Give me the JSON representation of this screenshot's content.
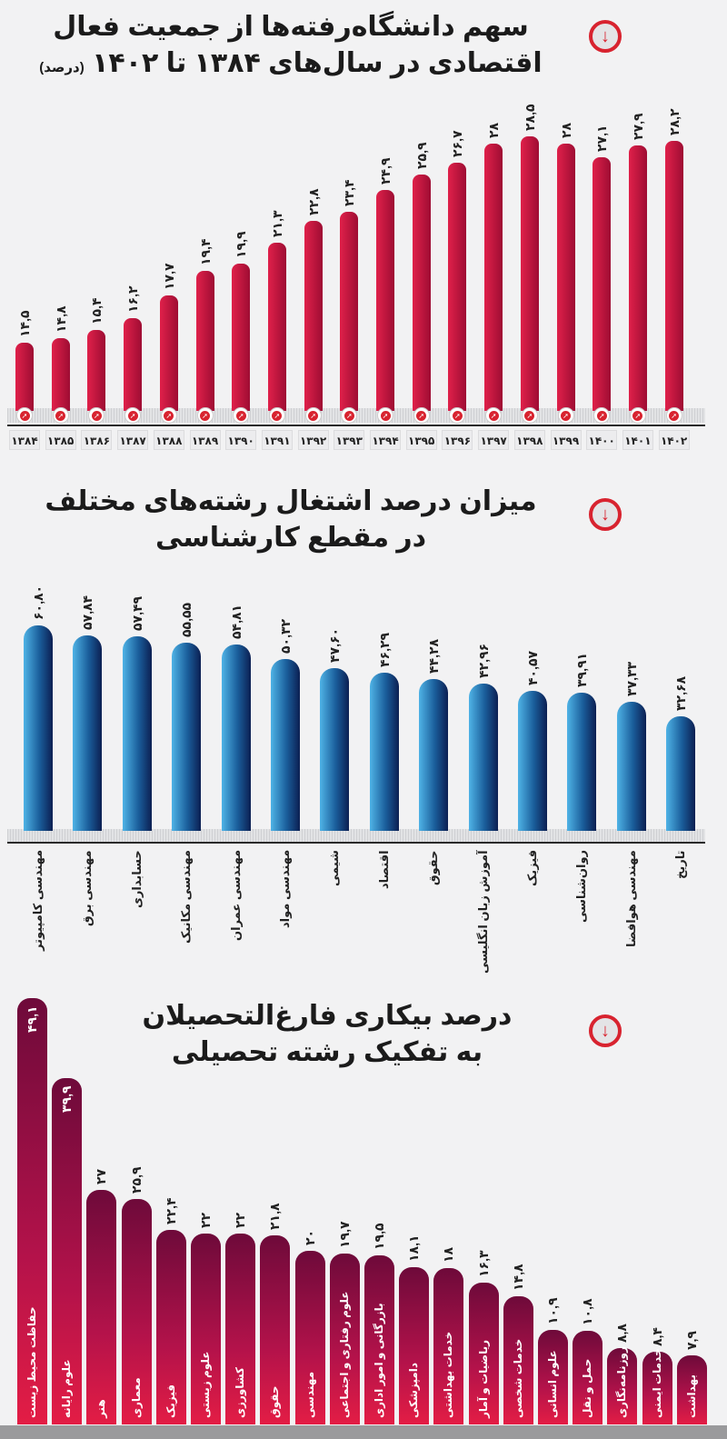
{
  "chart_data": [
    {
      "type": "bar",
      "title_line1": "سهم دانشگاه‌رفته‌ها از جمعیت فعال",
      "title_line2": "اقتصادی در سال‌های ۱۳۸۴ تا ۱۴۰۲",
      "title_unit": "(درصد)",
      "categories": [
        "۱۳۸۴",
        "۱۳۸۵",
        "۱۳۸۶",
        "۱۳۸۷",
        "۱۳۸۸",
        "۱۳۸۹",
        "۱۳۹۰",
        "۱۳۹۱",
        "۱۳۹۲",
        "۱۳۹۳",
        "۱۳۹۴",
        "۱۳۹۵",
        "۱۳۹۶",
        "۱۳۹۷",
        "۱۳۹۸",
        "۱۳۹۹",
        "۱۴۰۰",
        "۱۴۰۱",
        "۱۴۰۲"
      ],
      "values": [
        14.5,
        14.8,
        15.4,
        16.2,
        17.7,
        19.4,
        19.9,
        21.3,
        22.8,
        23.4,
        24.9,
        25.9,
        26.7,
        28,
        28.5,
        28,
        27.1,
        27.9,
        28.2
      ],
      "value_labels": [
        "۱۴,۵",
        "۱۴,۸",
        "۱۵,۴",
        "۱۶,۲",
        "۱۷,۷",
        "۱۹,۴",
        "۱۹,۹",
        "۲۱,۳",
        "۲۲,۸",
        "۲۳,۴",
        "۲۴,۹",
        "۲۵,۹",
        "۲۶,۷",
        "۲۸",
        "۲۸,۵",
        "۲۸",
        "۲۷,۱",
        "۲۷,۹",
        "۲۸,۲"
      ],
      "color": "#c8123a",
      "icon": "download-arrow-icon"
    },
    {
      "type": "bar",
      "title_line1": "میزان درصد اشتغال رشته‌های مختلف",
      "title_line2": "در مقطع کارشناسی",
      "categories": [
        "مهندسی کامپیوتر",
        "مهندسی برق",
        "حسابداری",
        "مهندسی مکانیک",
        "مهندسی عمران",
        "مهندسی مواد",
        "شیمی",
        "اقتصاد",
        "حقوق",
        "آموزش زبان انگلیسی",
        "فیزیک",
        "روان‌شناسی",
        "مهندسی هوافضا",
        "تاریخ"
      ],
      "values": [
        60.8,
        57.84,
        57.49,
        55.55,
        54.81,
        50.32,
        47.6,
        46.29,
        44.28,
        42.96,
        40.57,
        39.91,
        37.33,
        32.68
      ],
      "value_labels": [
        "۶۰,۸۰",
        "۵۷,۸۴",
        "۵۷,۴۹",
        "۵۵,۵۵",
        "۵۴,۸۱",
        "۵۰,۳۲",
        "۴۷,۶۰",
        "۴۶,۲۹",
        "۴۴,۲۸",
        "۴۲,۹۶",
        "۴۰,۵۷",
        "۳۹,۹۱",
        "۳۷,۳۳",
        "۳۲,۶۸"
      ],
      "color": "#1d6fae",
      "icon": "download-arrow-icon"
    },
    {
      "type": "bar",
      "title_line1": "درصد بیکاری فارغ‌التحصیلان",
      "title_line2": "به تفکیک رشته تحصیلی",
      "categories": [
        "حفاظت محیط زیست",
        "علوم رایانه",
        "هنر",
        "معماری",
        "فیزیک",
        "علوم زیستی",
        "کشاورزی",
        "حقوق",
        "مهندسی",
        "علوم رفتاری و اجتماعی",
        "بازرگانی و امور اداری",
        "دامپزشکی",
        "خدمات بهداشتی",
        "ریاضیات و آمار",
        "خدمات شخصی",
        "علوم انسانی",
        "حمل و نقل",
        "روزنامه‌نگاری",
        "خدمات ایمنی",
        "بهداشت"
      ],
      "values": [
        49.1,
        39.9,
        27,
        25.9,
        22.4,
        22,
        22,
        21.8,
        20,
        19.7,
        19.5,
        18.1,
        18,
        16.3,
        14.8,
        10.9,
        10.8,
        8.8,
        8.4,
        7.9
      ],
      "value_labels": [
        "۴۹,۱",
        "۳۹,۹",
        "۲۷",
        "۲۵,۹",
        "۲۲,۴",
        "۲۲",
        "۲۲",
        "۲۱,۸",
        "۲۰",
        "۱۹,۷",
        "۱۹,۵",
        "۱۸,۱",
        "۱۸",
        "۱۶,۳",
        "۱۴,۸",
        "۱۰,۹",
        "۱۰,۸",
        "۸,۸",
        "۸,۴",
        "۷,۹"
      ],
      "color": "#a8103f",
      "icon": "download-arrow-icon"
    }
  ]
}
